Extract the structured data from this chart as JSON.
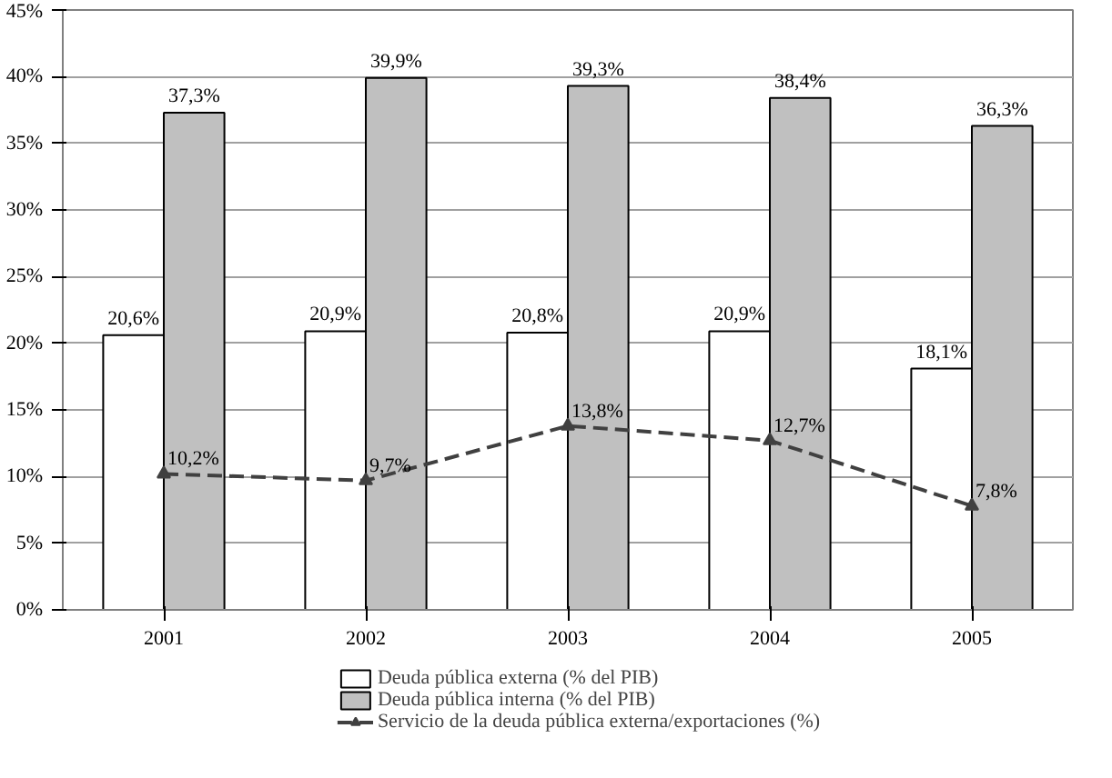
{
  "chart_data": {
    "type": "bar",
    "categories": [
      "2001",
      "2002",
      "2003",
      "2004",
      "2005"
    ],
    "series": [
      {
        "name": "Deuda pública externa (% del PIB)",
        "color": "#ffffff",
        "values": [
          20.6,
          20.9,
          20.8,
          20.9,
          18.1
        ],
        "value_labels": [
          "20,6%",
          "20,9%",
          "20,8%",
          "20,9%",
          "18,1%"
        ]
      },
      {
        "name": "Deuda pública interna (% del PIB)",
        "color": "#c0c0c0",
        "values": [
          37.3,
          39.9,
          39.3,
          38.4,
          36.3
        ],
        "value_labels": [
          "37,3%",
          "39,9%",
          "39,3%",
          "38,4%",
          "36,3%"
        ]
      },
      {
        "name": "Servicio de la deuda pública externa/exportaciones (%)",
        "type": "line",
        "color": "#404040",
        "marker": "triangle",
        "line_style": "dashed",
        "values": [
          10.2,
          9.7,
          13.8,
          12.7,
          7.8
        ],
        "value_labels": [
          "10,2%",
          "9,7%",
          "13,8%",
          "12,7%",
          "7,8%"
        ]
      }
    ],
    "ylim": [
      0,
      45
    ],
    "yticks": [
      {
        "value": 0,
        "label": "0%"
      },
      {
        "value": 5,
        "label": "5%"
      },
      {
        "value": 10,
        "label": "10%"
      },
      {
        "value": 15,
        "label": "15%"
      },
      {
        "value": 20,
        "label": "20%"
      },
      {
        "value": 25,
        "label": "25%"
      },
      {
        "value": 30,
        "label": "30%"
      },
      {
        "value": 35,
        "label": "35%"
      },
      {
        "value": 40,
        "label": "40%"
      },
      {
        "value": 45,
        "label": "45%"
      }
    ],
    "grid": "y",
    "legend": "bottom"
  }
}
